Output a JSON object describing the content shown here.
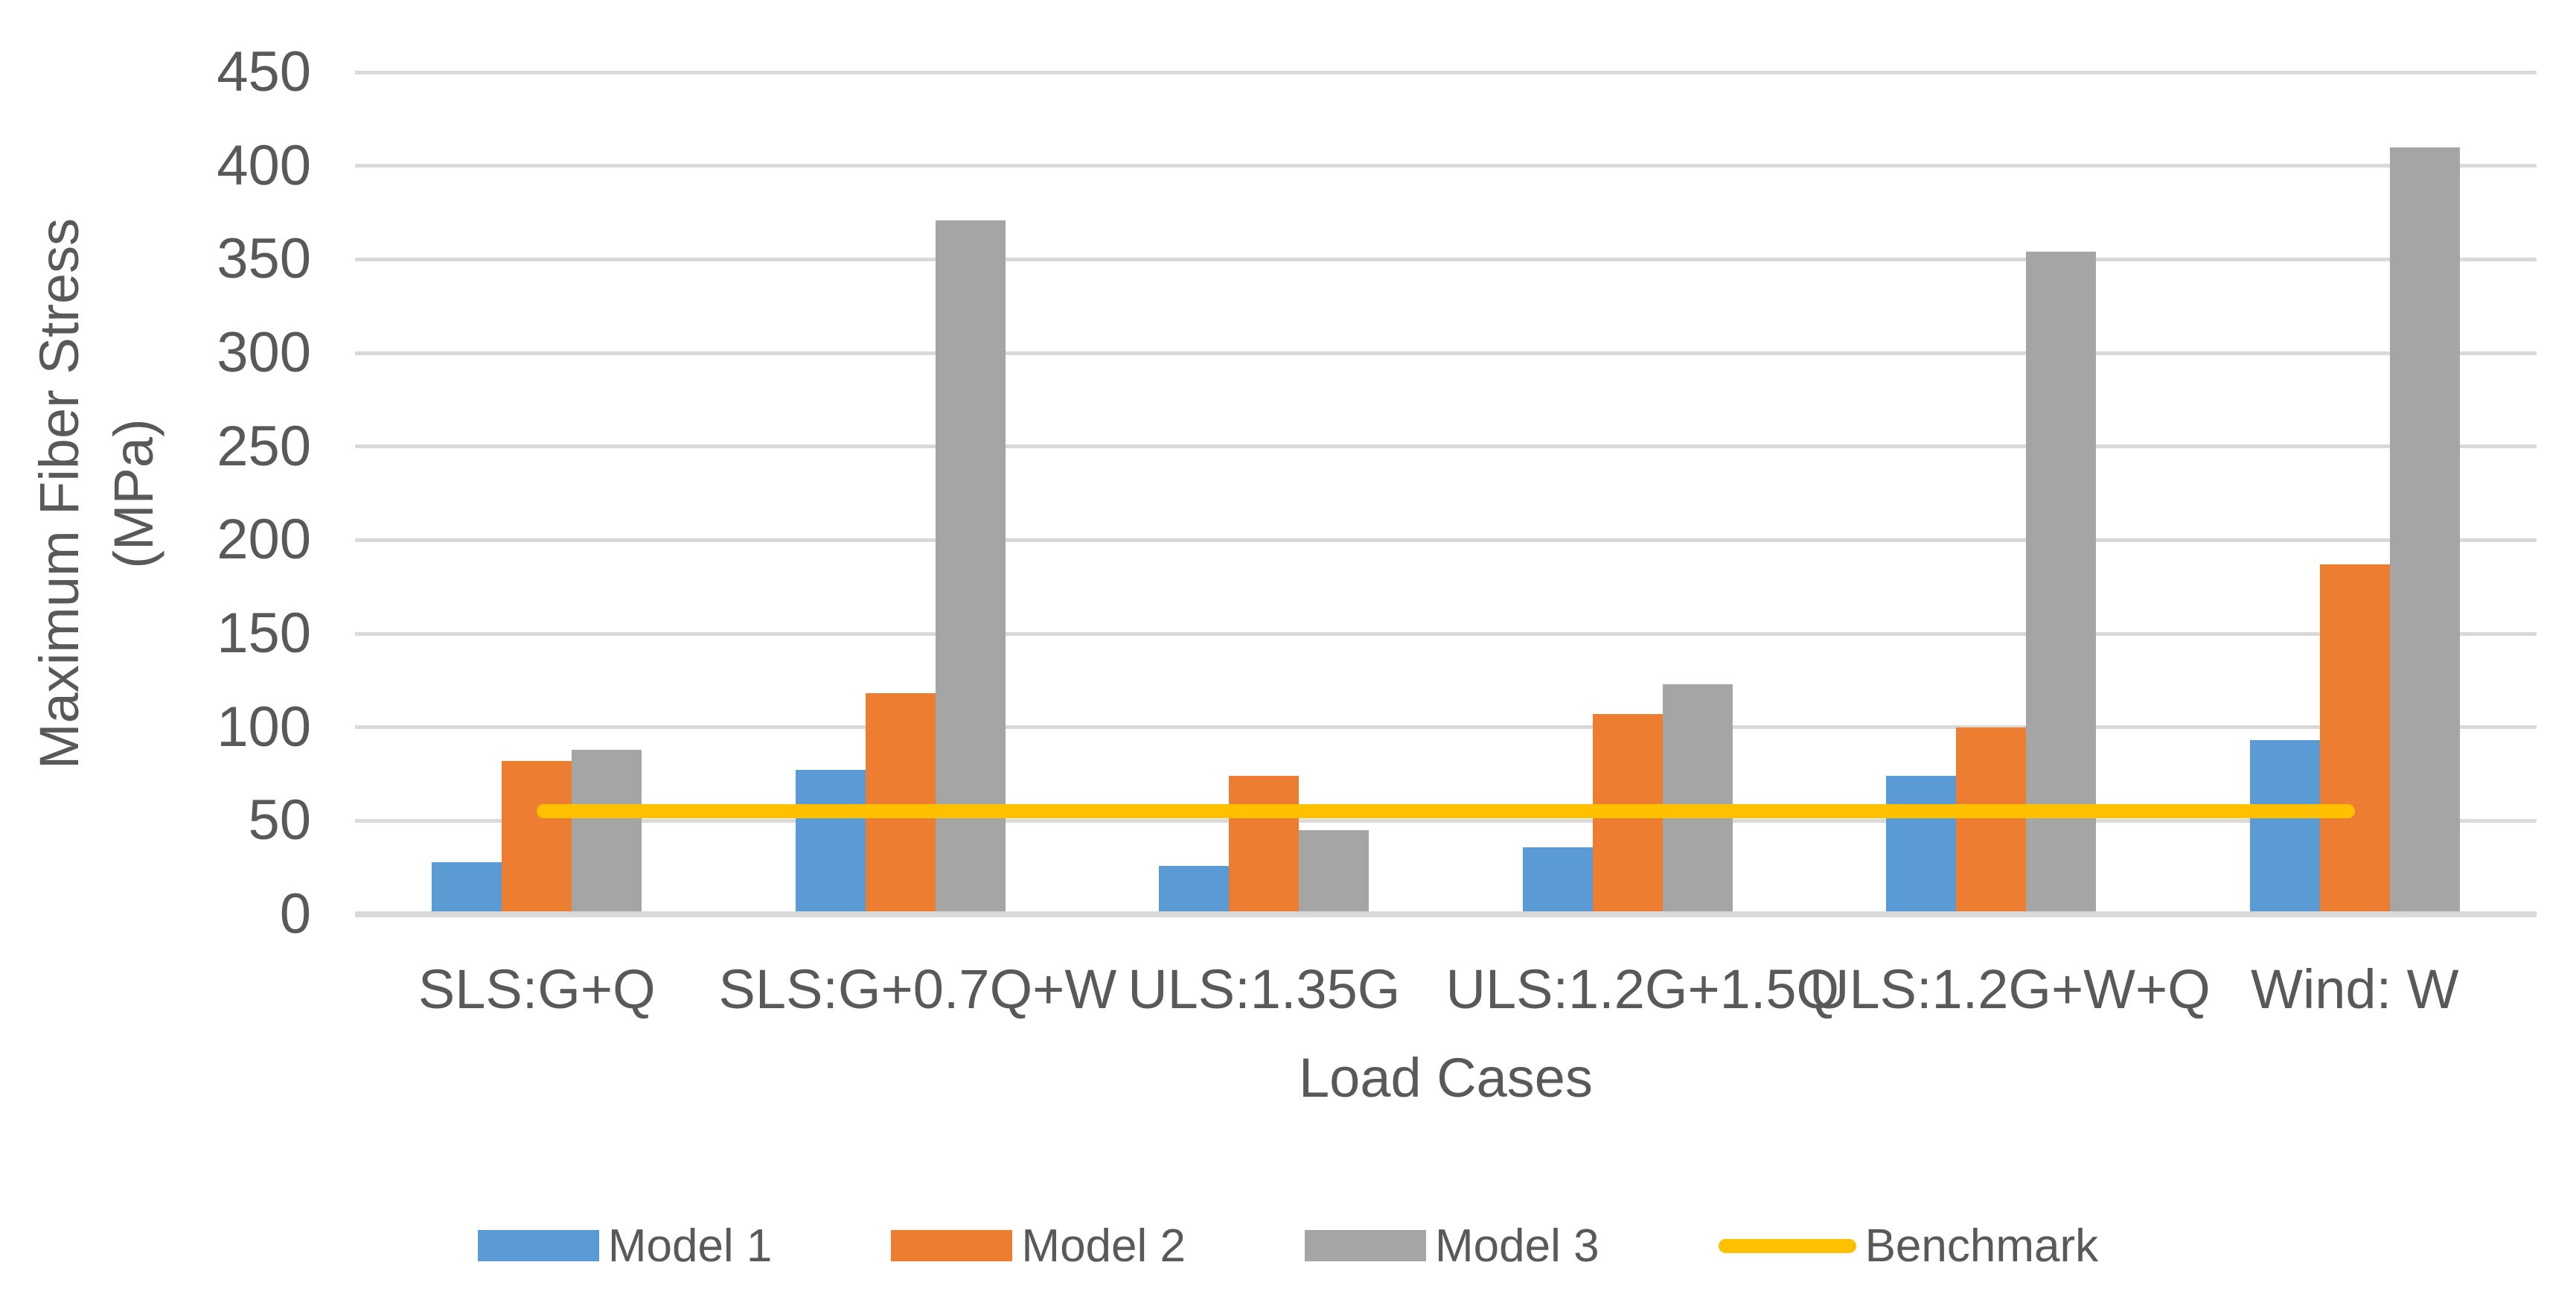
{
  "chart_data": {
    "type": "bar",
    "title": "",
    "xlabel": "Load Cases",
    "ylabel": "Maximum Fiber Stress (MPa)",
    "ylabel_lines": [
      "Maximum Fiber Stress",
      "(MPa)"
    ],
    "ylim": [
      0,
      450
    ],
    "ytick_step": 50,
    "yticks": [
      0,
      50,
      100,
      150,
      200,
      250,
      300,
      350,
      400,
      450
    ],
    "grid": "horizontal",
    "legend_position": "bottom",
    "categories": [
      "SLS:G+Q",
      "SLS:G+0.7Q+W",
      "ULS:1.35G",
      "ULS:1.2G+1.5Q",
      "ULS:1.2G+W+Q",
      "Wind: W"
    ],
    "series": [
      {
        "name": "Model 1",
        "type": "bar",
        "color": "#5B9BD5",
        "values": [
          28,
          77,
          26,
          36,
          74,
          93
        ]
      },
      {
        "name": "Model 2",
        "type": "bar",
        "color": "#ED7D31",
        "values": [
          82,
          118,
          74,
          107,
          100,
          187
        ]
      },
      {
        "name": "Model 3",
        "type": "bar",
        "color": "#A5A5A5",
        "values": [
          88,
          371,
          45,
          123,
          354,
          410
        ]
      },
      {
        "name": "Benchmark",
        "type": "line",
        "color": "#FFC000",
        "values": [
          55,
          55,
          55,
          55,
          55,
          55
        ]
      }
    ]
  },
  "colors": {
    "background": "#FFFFFF",
    "gridline": "#D9D9D9",
    "axis_text": "#595959",
    "model1": "#5B9BD5",
    "model2": "#ED7D31",
    "model3": "#A5A5A5",
    "benchmark": "#FFC000"
  }
}
